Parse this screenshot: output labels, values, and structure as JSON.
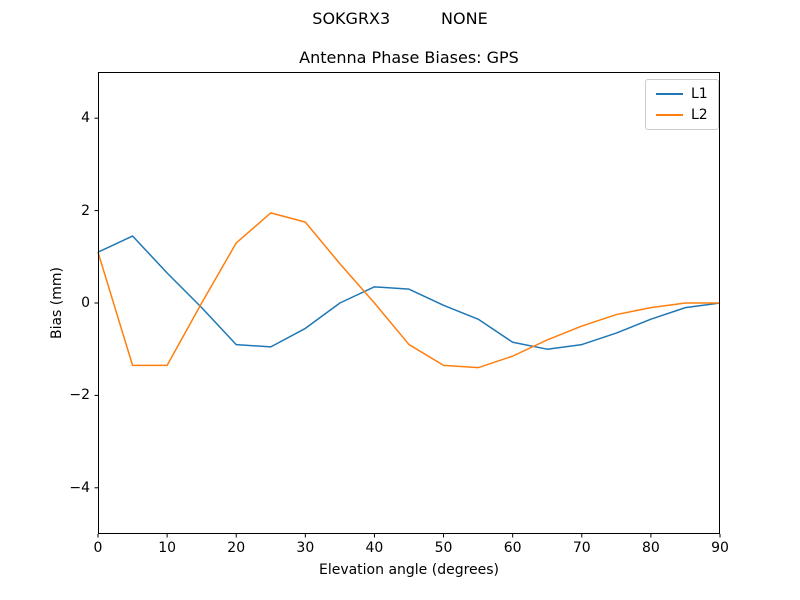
{
  "chart_data": {
    "type": "line",
    "suptitle": "SOKGRX3          NONE",
    "title": "Antenna Phase Biases: GPS",
    "xlabel": "Elevation angle (degrees)",
    "ylabel": "Bias (mm)",
    "xlim": [
      0,
      90
    ],
    "ylim": [
      -5,
      5
    ],
    "grid": false,
    "xticks": [
      {
        "value": 0,
        "label": "0"
      },
      {
        "value": 10,
        "label": "10"
      },
      {
        "value": 20,
        "label": "20"
      },
      {
        "value": 30,
        "label": "30"
      },
      {
        "value": 40,
        "label": "40"
      },
      {
        "value": 50,
        "label": "50"
      },
      {
        "value": 60,
        "label": "60"
      },
      {
        "value": 70,
        "label": "70"
      },
      {
        "value": 80,
        "label": "80"
      },
      {
        "value": 90,
        "label": "90"
      }
    ],
    "yticks": [
      {
        "value": 4,
        "label": "4"
      },
      {
        "value": 2,
        "label": "2"
      },
      {
        "value": 0,
        "label": "0"
      },
      {
        "value": -2,
        "label": "−2"
      },
      {
        "value": -4,
        "label": "−4"
      }
    ],
    "x": [
      0,
      5,
      10,
      15,
      20,
      25,
      30,
      35,
      40,
      45,
      50,
      55,
      60,
      65,
      70,
      75,
      80,
      85,
      90
    ],
    "series": [
      {
        "name": "L1",
        "color": "#1f77b4",
        "values": [
          1.1,
          1.45,
          0.65,
          -0.1,
          -0.9,
          -0.95,
          -0.55,
          0.0,
          0.35,
          0.3,
          -0.05,
          -0.35,
          -0.85,
          -1.0,
          -0.9,
          -0.65,
          -0.35,
          -0.1,
          0.0
        ]
      },
      {
        "name": "L2",
        "color": "#ff7f0e",
        "values": [
          1.1,
          -1.35,
          -1.35,
          0.0,
          1.3,
          1.95,
          1.75,
          0.85,
          0.0,
          -0.9,
          -1.35,
          -1.4,
          -1.15,
          -0.8,
          -0.5,
          -0.25,
          -0.1,
          0.0,
          0.0
        ]
      }
    ],
    "legend": {
      "position": "upper right",
      "entries": [
        "L1",
        "L2"
      ]
    },
    "axis_color": "#000000",
    "background_color": "#ffffff"
  }
}
